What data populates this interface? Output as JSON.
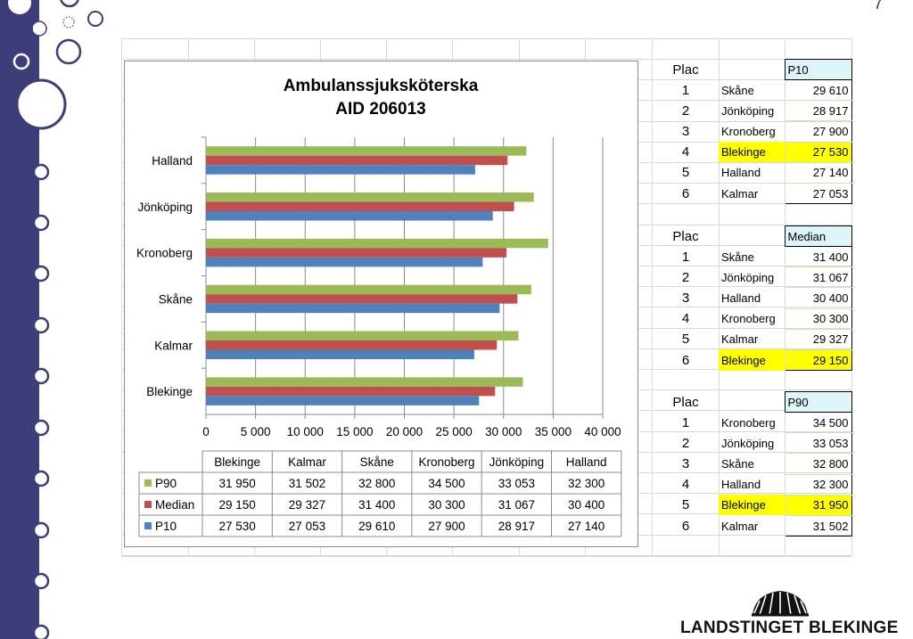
{
  "page_number": "7",
  "chart_data": {
    "type": "bar",
    "orientation": "horizontal",
    "title": "Ambulanssjuksköterska",
    "subtitle": "AID 206013",
    "categories": [
      "Blekinge",
      "Kalmar",
      "Skåne",
      "Kronoberg",
      "Jönköping",
      "Halland"
    ],
    "series": [
      {
        "name": "P90",
        "color": "#9bbb59",
        "values": [
          31950,
          31502,
          32800,
          34500,
          33053,
          32300
        ],
        "labels": [
          "31 950",
          "31 502",
          "32 800",
          "34 500",
          "33 053",
          "32 300"
        ]
      },
      {
        "name": "Median",
        "color": "#c0504d",
        "values": [
          29150,
          29327,
          31400,
          30300,
          31067,
          30400
        ],
        "labels": [
          "29 150",
          "29 327",
          "31 400",
          "30 300",
          "31 067",
          "30 400"
        ]
      },
      {
        "name": "P10",
        "color": "#4f81bd",
        "values": [
          27530,
          27053,
          29610,
          27900,
          28917,
          27140
        ],
        "labels": [
          "27 530",
          "27 053",
          "29 610",
          "27 900",
          "28 917",
          "27 140"
        ]
      }
    ],
    "xlim": [
      0,
      40000
    ],
    "x_ticks": [
      0,
      5000,
      10000,
      15000,
      20000,
      25000,
      30000,
      35000,
      40000
    ],
    "x_tick_labels": [
      "0",
      "5 000",
      "10 000",
      "15 000",
      "20 000",
      "25 000",
      "30 000",
      "35 000",
      "40 000"
    ],
    "grid": "vertical",
    "legend": "data-table"
  },
  "rankings": [
    {
      "place_header": "Plac",
      "measure": "P10",
      "header_color": "#ddf4f8",
      "rows": [
        {
          "place": "1",
          "region": "Skåne",
          "value": "29 610",
          "highlight": false
        },
        {
          "place": "2",
          "region": "Jönköping",
          "value": "28 917",
          "highlight": false
        },
        {
          "place": "3",
          "region": "Kronoberg",
          "value": "27 900",
          "highlight": false
        },
        {
          "place": "4",
          "region": "Blekinge",
          "value": "27 530",
          "highlight": true
        },
        {
          "place": "5",
          "region": "Halland",
          "value": "27 140",
          "highlight": false
        },
        {
          "place": "6",
          "region": "Kalmar",
          "value": "27 053",
          "highlight": false
        }
      ]
    },
    {
      "place_header": "Plac",
      "measure": "Median",
      "header_color": "#ddf4f8",
      "rows": [
        {
          "place": "1",
          "region": "Skåne",
          "value": "31 400",
          "highlight": false
        },
        {
          "place": "2",
          "region": "Jönköping",
          "value": "31 067",
          "highlight": false
        },
        {
          "place": "3",
          "region": "Halland",
          "value": "30 400",
          "highlight": false
        },
        {
          "place": "4",
          "region": "Kronoberg",
          "value": "30 300",
          "highlight": false
        },
        {
          "place": "5",
          "region": "Kalmar",
          "value": "29 327",
          "highlight": false
        },
        {
          "place": "6",
          "region": "Blekinge",
          "value": "29 150",
          "highlight": true
        }
      ]
    },
    {
      "place_header": "Plac",
      "measure": "P90",
      "header_color": "#ddf4f8",
      "rows": [
        {
          "place": "1",
          "region": "Kronoberg",
          "value": "34 500",
          "highlight": false
        },
        {
          "place": "2",
          "region": "Jönköping",
          "value": "33 053",
          "highlight": false
        },
        {
          "place": "3",
          "region": "Skåne",
          "value": "32 800",
          "highlight": false
        },
        {
          "place": "4",
          "region": "Halland",
          "value": "32 300",
          "highlight": false
        },
        {
          "place": "5",
          "region": "Blekinge",
          "value": "31 950",
          "highlight": true
        },
        {
          "place": "6",
          "region": "Kalmar",
          "value": "31 502",
          "highlight": false
        }
      ]
    }
  ],
  "logo": {
    "text": "LANDSTINGET BLEKINGE",
    "icon": "blekinge-crown-logo-icon"
  },
  "highlight_color": "#ffff00",
  "brand_color": "#3b3e78"
}
